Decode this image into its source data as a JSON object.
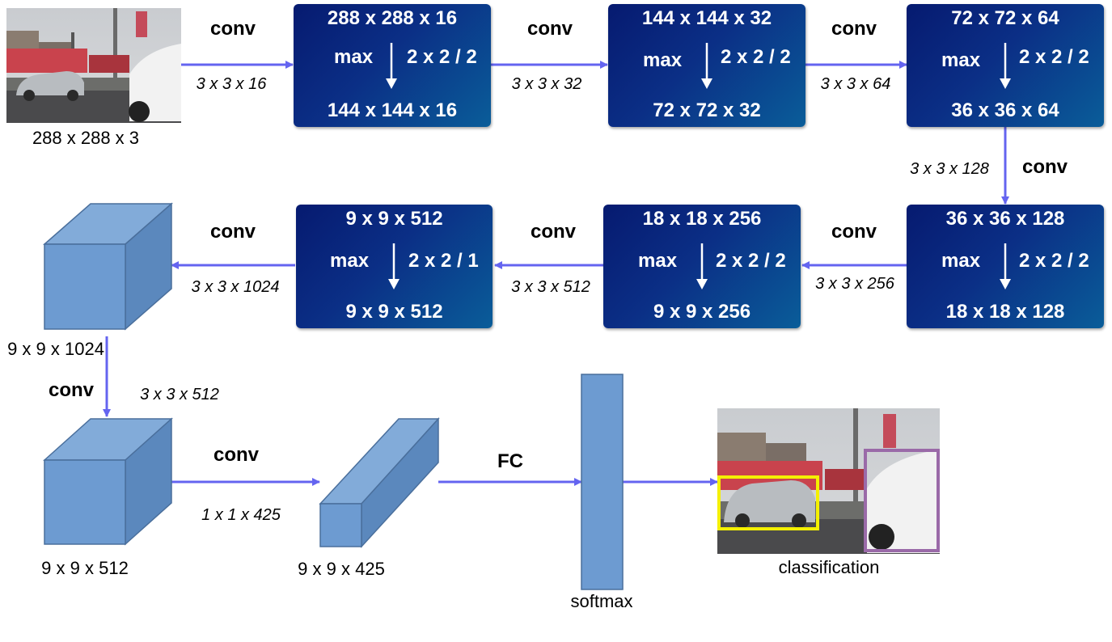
{
  "colors": {
    "block_dark": "#061a70",
    "block_light": "#0a5d99",
    "arrow": "#6464f0",
    "cube_face": "#6d9bd1",
    "cube_edge": "#4a6f9c",
    "box_car": "#f4f000",
    "box_truck": "#9a6aa8"
  },
  "input": {
    "caption": "288 x 288 x 3"
  },
  "blocks": [
    {
      "top": "288 x 288 x 16",
      "op": "max",
      "pool": "2 x 2 / 2",
      "bottom": "144 x 144 x 16"
    },
    {
      "top": "144 x 144 x 32",
      "op": "max",
      "pool": "2 x 2 / 2",
      "bottom": "72 x 72 x 32"
    },
    {
      "top": "72 x 72 x 64",
      "op": "max",
      "pool": "2 x 2 / 2",
      "bottom": "36 x 36 x 64"
    },
    {
      "top": "36 x 36 x 128",
      "op": "max",
      "pool": "2 x 2 / 2",
      "bottom": "18 x 18 x 128"
    },
    {
      "top": "18 x 18 x 256",
      "op": "max",
      "pool": "2 x 2 / 2",
      "bottom": "9 x 9 x 256"
    },
    {
      "top": "9 x 9 x 512",
      "op": "max",
      "pool": "2 x 2 / 1",
      "bottom": "9 x 9 x 512"
    }
  ],
  "edges": [
    {
      "op": "conv",
      "kernel": "3 x 3 x 16"
    },
    {
      "op": "conv",
      "kernel": "3 x 3 x 32"
    },
    {
      "op": "conv",
      "kernel": "3 x 3 x 64"
    },
    {
      "op": "conv",
      "kernel": "3 x 3 x 128"
    },
    {
      "op": "conv",
      "kernel": "3 x 3 x 256"
    },
    {
      "op": "conv",
      "kernel": "3 x 3 x 512"
    },
    {
      "op": "conv",
      "kernel": "3 x 3 x 1024"
    },
    {
      "op": "conv",
      "kernel": "3 x 3 x 512"
    },
    {
      "op": "conv",
      "kernel": "1 x 1 x 425"
    },
    {
      "op": "FC"
    }
  ],
  "tensors": {
    "t1024": "9 x 9 x 1024",
    "t512": "9 x 9 x 512",
    "t425": "9 x 9 x 425"
  },
  "softmax": {
    "label": "softmax"
  },
  "output": {
    "caption": "classification"
  }
}
